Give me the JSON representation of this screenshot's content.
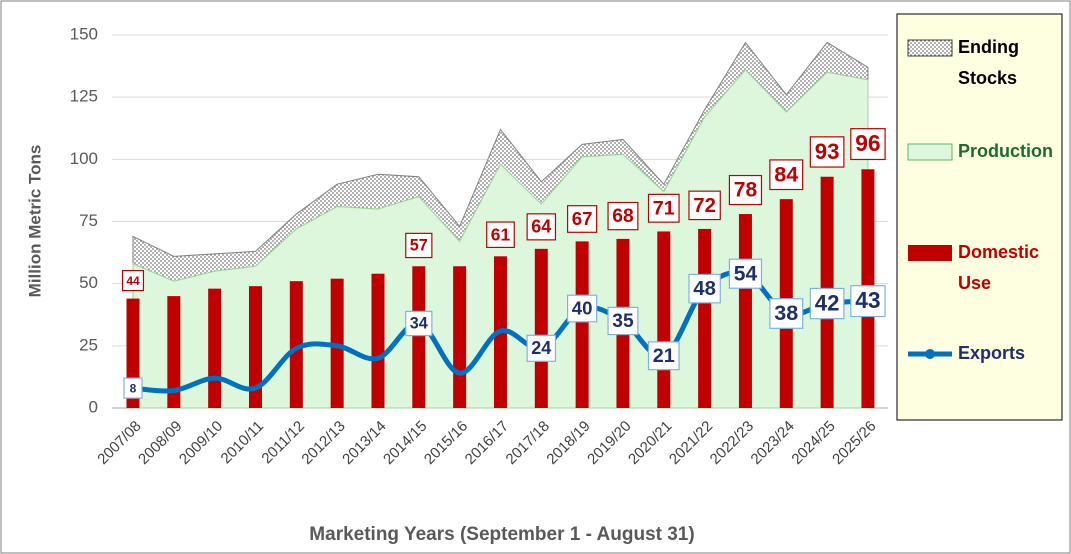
{
  "chart_data": {
    "type": "combo",
    "x_label": "Marketing Years (September 1 - August 31)",
    "y_label": "Million Metric Tons",
    "categories": [
      "2007/08",
      "2008/09",
      "2009/10",
      "2010/11",
      "2011/12",
      "2012/13",
      "2013/14",
      "2014/15",
      "2015/16",
      "2016/17",
      "2017/18",
      "2018/19",
      "2019/20",
      "2020/21",
      "2021/22",
      "2022/23",
      "2023/24",
      "2024/25",
      "2025/26"
    ],
    "ylim": [
      0,
      150
    ],
    "yticks": [
      0,
      25,
      50,
      75,
      100,
      125,
      150
    ],
    "grid": true,
    "legend": "right",
    "series": [
      {
        "name": "Ending Stocks",
        "type": "stacked-area",
        "color": "#808080",
        "values": [
          11,
          10,
          7,
          6,
          6,
          9,
          14,
          8,
          6,
          14,
          9,
          5,
          6,
          3,
          3,
          11,
          7,
          12,
          5
        ]
      },
      {
        "name": "Production",
        "type": "area",
        "color": "#dcf7dc",
        "values": [
          58,
          51,
          55,
          57,
          72,
          81,
          80,
          85,
          67,
          98,
          82,
          101,
          102,
          87,
          117,
          136,
          119,
          135,
          132
        ]
      },
      {
        "name": "Domestic Use",
        "type": "bar",
        "color": "#c00000",
        "values": [
          44,
          45,
          48,
          49,
          51,
          52,
          54,
          57,
          57,
          61,
          64,
          67,
          68,
          71,
          72,
          78,
          84,
          93,
          96
        ],
        "value_labels": [
          "44",
          null,
          null,
          null,
          null,
          null,
          null,
          "57",
          null,
          "61",
          "64",
          "67",
          "68",
          "71",
          "72",
          "78",
          "84",
          "93",
          "96"
        ]
      },
      {
        "name": "Exports",
        "type": "line",
        "color": "#0070c0",
        "values": [
          8,
          7,
          12,
          8,
          24,
          25,
          20,
          34,
          14,
          31,
          24,
          40,
          35,
          21,
          48,
          54,
          38,
          42,
          43
        ],
        "value_labels": [
          "8",
          null,
          null,
          null,
          null,
          null,
          null,
          "34",
          null,
          null,
          "24",
          "40",
          "35",
          "21",
          "48",
          "54",
          "38",
          "42",
          "43"
        ]
      }
    ]
  }
}
